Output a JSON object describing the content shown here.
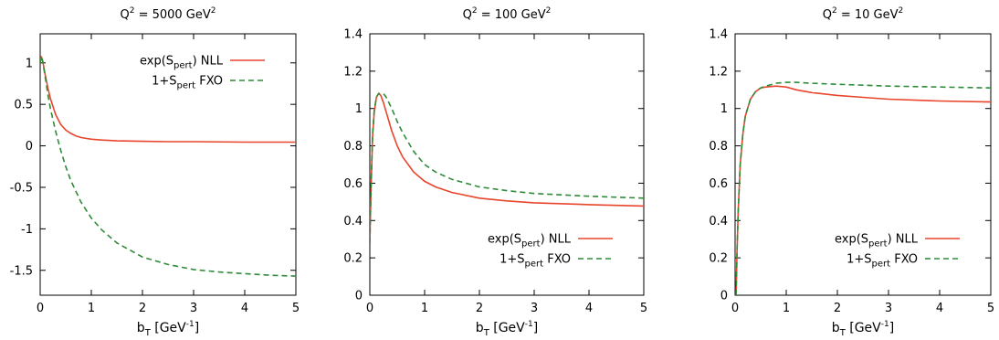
{
  "chart_data": [
    {
      "type": "line",
      "title": {
        "base": "Q",
        "sup": "2",
        "rest": " = 5000 GeV",
        "sup2": "2"
      },
      "xlabel": {
        "base": "b",
        "sub": "T",
        "rest": " [GeV",
        "sup": "-1",
        "end": "]"
      },
      "xlim": [
        0,
        5
      ],
      "ylim": [
        -1.8,
        1.35
      ],
      "xticks": [
        "0",
        "1",
        "2",
        "3",
        "4",
        "5"
      ],
      "xtick_values": [
        0,
        1,
        2,
        3,
        4,
        5
      ],
      "yticks": [
        "-1.5",
        "-1",
        "-0.5",
        "0",
        "0.5",
        "1"
      ],
      "ytick_values": [
        -1.5,
        -1,
        -0.5,
        0,
        0.5,
        1
      ],
      "legend_position": "top-right",
      "series": [
        {
          "name": {
            "a": "exp(S",
            "sub": "pert",
            "b": ") NLL"
          },
          "style": "solid",
          "color": "#e8452c",
          "x": [
            0,
            0.02,
            0.05,
            0.1,
            0.15,
            0.2,
            0.3,
            0.4,
            0.5,
            0.6,
            0.7,
            0.8,
            1.0,
            1.2,
            1.5,
            2.0,
            2.5,
            3.0,
            4.0,
            5.0
          ],
          "y": [
            1.0,
            1.08,
            1.02,
            0.85,
            0.7,
            0.57,
            0.38,
            0.26,
            0.19,
            0.15,
            0.12,
            0.1,
            0.08,
            0.07,
            0.06,
            0.055,
            0.05,
            0.05,
            0.045,
            0.045
          ]
        },
        {
          "name": {
            "a": "1+S",
            "sub": "pert",
            "b": " FXO"
          },
          "style": "dashed",
          "color": "#2e8b3a",
          "x": [
            0,
            0.02,
            0.05,
            0.1,
            0.15,
            0.2,
            0.3,
            0.4,
            0.5,
            0.6,
            0.8,
            1.0,
            1.2,
            1.5,
            2.0,
            2.5,
            3.0,
            3.5,
            4.0,
            4.5,
            5.0
          ],
          "y": [
            1.0,
            1.08,
            1.02,
            0.82,
            0.62,
            0.45,
            0.18,
            -0.05,
            -0.25,
            -0.42,
            -0.68,
            -0.87,
            -1.01,
            -1.17,
            -1.34,
            -1.43,
            -1.49,
            -1.52,
            -1.54,
            -1.56,
            -1.57
          ]
        }
      ]
    },
    {
      "type": "line",
      "title": {
        "base": "Q",
        "sup": "2",
        "rest": " = 100 GeV",
        "sup2": "2"
      },
      "xlabel": {
        "base": "b",
        "sub": "T",
        "rest": " [GeV",
        "sup": "-1",
        "end": "]"
      },
      "xlim": [
        0,
        5
      ],
      "ylim": [
        0,
        1.4
      ],
      "xticks": [
        "0",
        "1",
        "2",
        "3",
        "4",
        "5"
      ],
      "xtick_values": [
        0,
        1,
        2,
        3,
        4,
        5
      ],
      "yticks": [
        "0",
        "0.2",
        "0.4",
        "0.6",
        "0.8",
        "1",
        "1.2",
        "1.4"
      ],
      "ytick_values": [
        0,
        0.2,
        0.4,
        0.6,
        0.8,
        1.0,
        1.2,
        1.4
      ],
      "legend_position": "bottom-right",
      "series": [
        {
          "name": {
            "a": "exp(S",
            "sub": "pert",
            "b": ") NLL"
          },
          "style": "solid",
          "color": "#e8452c",
          "x": [
            0,
            0.02,
            0.05,
            0.08,
            0.12,
            0.16,
            0.2,
            0.25,
            0.3,
            0.4,
            0.5,
            0.6,
            0.8,
            1.0,
            1.2,
            1.5,
            2.0,
            2.5,
            3.0,
            4.0,
            5.0
          ],
          "y": [
            0.28,
            0.55,
            0.85,
            0.98,
            1.06,
            1.08,
            1.07,
            1.03,
            0.98,
            0.88,
            0.8,
            0.74,
            0.66,
            0.61,
            0.58,
            0.55,
            0.52,
            0.505,
            0.495,
            0.485,
            0.478
          ]
        },
        {
          "name": {
            "a": "1+S",
            "sub": "pert",
            "b": " FXO"
          },
          "style": "dashed",
          "color": "#2e8b3a",
          "x": [
            0,
            0.02,
            0.05,
            0.08,
            0.12,
            0.16,
            0.2,
            0.25,
            0.3,
            0.4,
            0.5,
            0.6,
            0.8,
            1.0,
            1.2,
            1.5,
            2.0,
            2.5,
            3.0,
            4.0,
            5.0
          ],
          "y": [
            0.28,
            0.55,
            0.86,
            0.99,
            1.06,
            1.08,
            1.08,
            1.08,
            1.06,
            1.0,
            0.93,
            0.87,
            0.77,
            0.7,
            0.66,
            0.62,
            0.58,
            0.56,
            0.545,
            0.53,
            0.52
          ]
        }
      ]
    },
    {
      "type": "line",
      "title": {
        "base": "Q",
        "sup": "2",
        "rest": " = 10 GeV",
        "sup2": "2"
      },
      "xlabel": {
        "base": "b",
        "sub": "T",
        "rest": " [GeV",
        "sup": "-1",
        "end": "]"
      },
      "xlim": [
        0,
        5
      ],
      "ylim": [
        0,
        1.4
      ],
      "xticks": [
        "0",
        "1",
        "2",
        "3",
        "4",
        "5"
      ],
      "xtick_values": [
        0,
        1,
        2,
        3,
        4,
        5
      ],
      "yticks": [
        "0",
        "0.2",
        "0.4",
        "0.6",
        "0.8",
        "1",
        "1.2",
        "1.4"
      ],
      "ytick_values": [
        0,
        0.2,
        0.4,
        0.6,
        0.8,
        1.0,
        1.2,
        1.4
      ],
      "legend_position": "bottom-right",
      "series": [
        {
          "name": {
            "a": "exp(S",
            "sub": "pert",
            "b": ") NLL"
          },
          "style": "solid",
          "color": "#e8452c",
          "x": [
            0.02,
            0.04,
            0.06,
            0.1,
            0.15,
            0.2,
            0.3,
            0.4,
            0.5,
            0.6,
            0.8,
            1.0,
            1.2,
            1.5,
            2.0,
            2.5,
            3.0,
            4.0,
            5.0
          ],
          "y": [
            0.0,
            0.25,
            0.45,
            0.7,
            0.86,
            0.96,
            1.05,
            1.09,
            1.11,
            1.115,
            1.12,
            1.115,
            1.1,
            1.085,
            1.07,
            1.06,
            1.05,
            1.04,
            1.035
          ]
        },
        {
          "name": {
            "a": "1+S",
            "sub": "pert",
            "b": " FXO"
          },
          "style": "dashed",
          "color": "#2e8b3a",
          "x": [
            0.02,
            0.04,
            0.06,
            0.1,
            0.15,
            0.2,
            0.3,
            0.4,
            0.5,
            0.6,
            0.8,
            1.0,
            1.2,
            1.5,
            2.0,
            2.5,
            3.0,
            4.0,
            5.0
          ],
          "y": [
            0.0,
            0.25,
            0.45,
            0.7,
            0.86,
            0.96,
            1.05,
            1.09,
            1.11,
            1.12,
            1.135,
            1.14,
            1.14,
            1.135,
            1.13,
            1.125,
            1.12,
            1.115,
            1.11
          ]
        }
      ]
    }
  ]
}
